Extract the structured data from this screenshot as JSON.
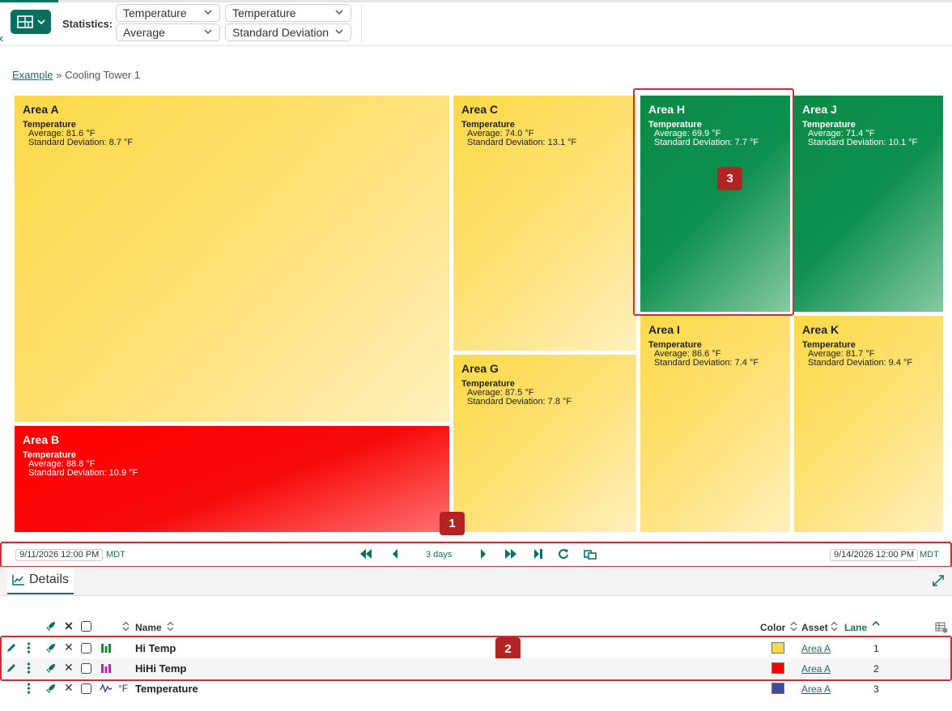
{
  "toolbar": {
    "statistics_label": "Statistics:",
    "selectors": [
      {
        "value": "Temperature"
      },
      {
        "value": "Temperature"
      },
      {
        "value": "Average"
      },
      {
        "value": "Standard Deviation"
      }
    ]
  },
  "breadcrumb": {
    "root": "Example",
    "separator": "»",
    "current": "Cooling Tower 1"
  },
  "treemap": {
    "tiles": [
      {
        "title": "Area A",
        "signal": "Temperature",
        "line1": "Average: 81.6 °F",
        "line2": "Standard Deviation: 8.7 °F",
        "color": "#fdd947"
      },
      {
        "title": "Area B",
        "signal": "Temperature",
        "line1": "Average: 88.8 °F",
        "line2": "Standard Deviation: 10.9 °F",
        "color": "#ff0000"
      },
      {
        "title": "Area C",
        "signal": "Temperature",
        "line1": "Average: 74.0 °F",
        "line2": "Standard Deviation: 13.1 °F",
        "color": "#fdd947"
      },
      {
        "title": "Area G",
        "signal": "Temperature",
        "line1": "Average: 87.5 °F",
        "line2": "Standard Deviation: 7.8 °F",
        "color": "#fdd947"
      },
      {
        "title": "Area H",
        "signal": "Temperature",
        "line1": "Average: 69.9 °F",
        "line2": "Standard Deviation: 7.7 °F",
        "color": "#0a8a46"
      },
      {
        "title": "Area J",
        "signal": "Temperature",
        "line1": "Average: 71.4 °F",
        "line2": "Standard Deviation: 10.1 °F",
        "color": "#0a8a46"
      },
      {
        "title": "Area I",
        "signal": "Temperature",
        "line1": "Average: 86.6 °F",
        "line2": "Standard Deviation: 7.4 °F",
        "color": "#fdd947"
      },
      {
        "title": "Area K",
        "signal": "Temperature",
        "line1": "Average: 81.7 °F",
        "line2": "Standard Deviation: 9.4 °F",
        "color": "#fdd947"
      }
    ]
  },
  "callouts": {
    "b1": "1",
    "b2": "2",
    "b3": "3"
  },
  "timebar": {
    "start": "9/11/2026 12:00 PM",
    "start_tz": "MDT",
    "duration": "3 days",
    "end": "9/14/2026 12:00 PM",
    "end_tz": "MDT"
  },
  "details": {
    "tab_label": "Details",
    "columns": {
      "name": "Name",
      "color": "Color",
      "asset": "Asset",
      "lane": "Lane"
    },
    "rows": [
      {
        "name": "Hi Temp",
        "unit": "",
        "color": "#fdd947",
        "asset": "Area A",
        "lane": "1"
      },
      {
        "name": "HiHi Temp",
        "unit": "",
        "color": "#ff0000",
        "asset": "Area A",
        "lane": "2"
      },
      {
        "name": "Temperature",
        "unit": "°F",
        "color": "#3f4aa0",
        "asset": "Area A",
        "lane": "3"
      }
    ]
  },
  "colors": {
    "accent": "#0b6f5f",
    "highlight": "#c8303a"
  }
}
